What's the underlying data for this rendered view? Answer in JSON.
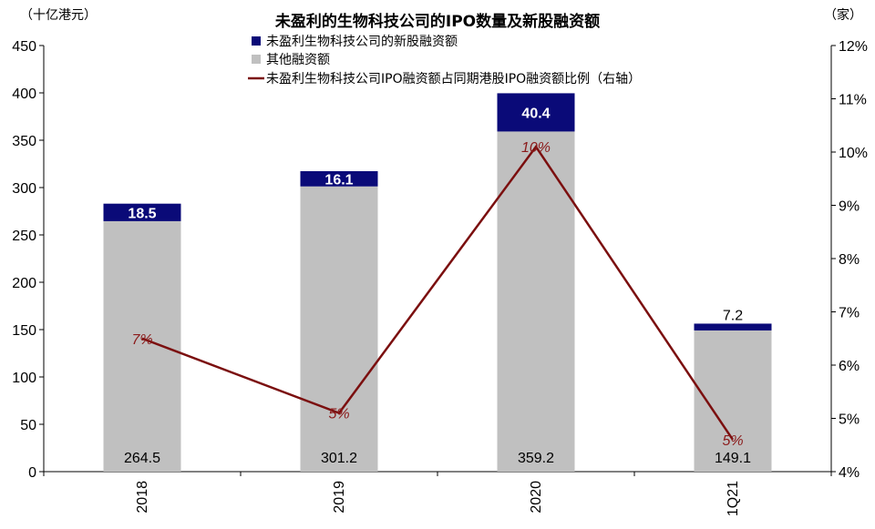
{
  "chart_data": {
    "type": "bar",
    "title": "未盈利的生物科技公司的IPO数量及新股融资额",
    "left_unit": "（十亿港元）",
    "right_unit": "（家）",
    "categories": [
      "2018",
      "2019",
      "2020",
      "1Q21"
    ],
    "series": [
      {
        "name": "其他融资额",
        "kind": "stacked-bar",
        "color": "#C0C0C0",
        "values": [
          264.5,
          301.2,
          359.2,
          149.1
        ]
      },
      {
        "name": "未盈利生物科技公司的新股融资额",
        "kind": "stacked-bar",
        "color": "#0A0A78",
        "values": [
          18.5,
          16.1,
          40.4,
          7.2
        ]
      },
      {
        "name": "未盈利生物科技公司IPO融资额占同期港股IPO融资额比例（右轴）",
        "kind": "line",
        "axis": "right",
        "color": "#7B0F0F",
        "values": [
          6.5,
          5.1,
          10.1,
          4.6
        ],
        "labels": [
          "7%",
          "5%",
          "10%",
          "5%"
        ]
      }
    ],
    "y_left": {
      "min": 0,
      "max": 450,
      "ticks": [
        "0",
        "50",
        "100",
        "150",
        "200",
        "250",
        "300",
        "350",
        "400",
        "450"
      ]
    },
    "y_right": {
      "min": 4,
      "max": 12,
      "ticks": [
        "4%",
        "5%",
        "6%",
        "7%",
        "8%",
        "9%",
        "10%",
        "11%",
        "12%"
      ]
    },
    "legend_position": "top"
  }
}
